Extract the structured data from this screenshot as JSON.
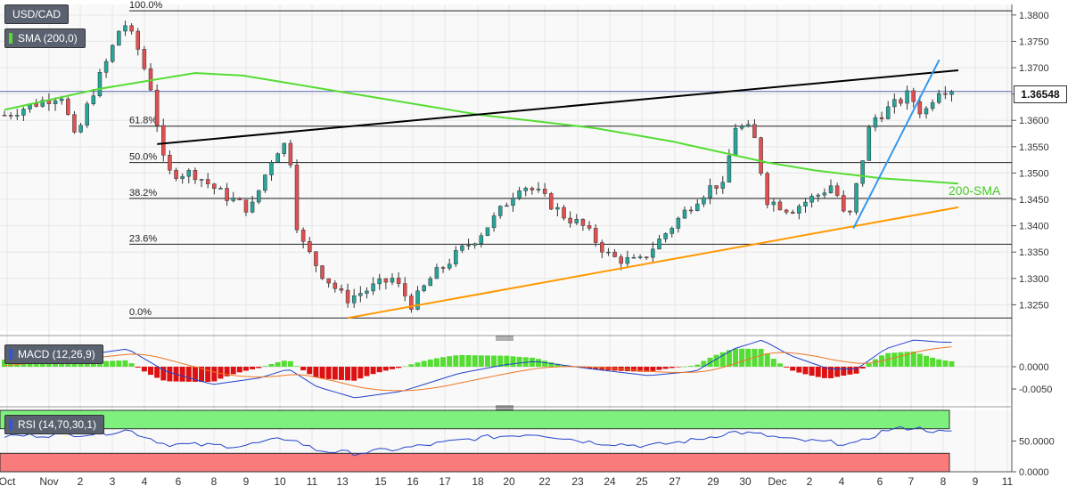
{
  "header": {
    "symbol": "USD/CAD",
    "sma_label": "SMA (200,0)",
    "current_price": "1.36548",
    "macd_label": "MACD (12,26,9)",
    "rsi_label": "RSI (14,70,30,1)"
  },
  "chart_data": [
    {
      "type": "candlestick",
      "panel": "price",
      "y_ticks": [
        "1.3800",
        "1.3750",
        "1.3700",
        "1.3650",
        "1.3600",
        "1.3550",
        "1.3500",
        "1.3450",
        "1.3400",
        "1.3350",
        "1.3300",
        "1.3250"
      ],
      "ylim": [
        1.32,
        1.382
      ],
      "x_ticks": [
        "Oct",
        "Nov",
        "2",
        "3",
        "4",
        "6",
        "8",
        "9",
        "10",
        "11",
        "13",
        "15",
        "16",
        "17",
        "18",
        "20",
        "22",
        "23",
        "24",
        "25",
        "27",
        "29",
        "30",
        "Dec",
        "2",
        "4",
        "6",
        "7",
        "8",
        "9",
        "11"
      ],
      "current_price": 1.36548,
      "fibonacci_levels": [
        {
          "label": "100.0%",
          "price": 1.3808
        },
        {
          "label": "61.8%",
          "price": 1.3589
        },
        {
          "label": "50.0%",
          "price": 1.352
        },
        {
          "label": "38.2%",
          "price": 1.3452
        },
        {
          "label": "23.6%",
          "price": 1.3365
        },
        {
          "label": "0.0%",
          "price": 1.3225
        }
      ],
      "sma_annotation": "200-SMA",
      "colors": {
        "up": "#26a69a",
        "down": "#e05050",
        "sma": "#55dd33",
        "resistance": "#000000",
        "support": "#ff9900",
        "trend": "#3399ee",
        "fib": "#000000"
      },
      "series": [
        {
          "name": "SMA (200,0)",
          "x": [
            0,
            0.1,
            0.2,
            0.25,
            0.3,
            0.4,
            0.5,
            0.55,
            0.62,
            0.7,
            0.75,
            0.8,
            0.85,
            0.92,
            1
          ],
          "y": [
            1.362,
            1.366,
            1.369,
            1.3685,
            1.367,
            1.364,
            1.361,
            1.36,
            1.3585,
            1.356,
            1.354,
            1.352,
            1.3505,
            1.349,
            1.348
          ]
        }
      ],
      "trendlines": [
        {
          "name": "resistance",
          "from": [
            0.16,
            1.3555
          ],
          "to": [
            1.0,
            1.3695
          ]
        },
        {
          "name": "support",
          "from": [
            0.36,
            1.3225
          ],
          "to": [
            1.0,
            1.3435
          ]
        },
        {
          "name": "trend",
          "from": [
            0.89,
            1.3395
          ],
          "to": [
            0.98,
            1.3715
          ]
        }
      ]
    },
    {
      "type": "bar",
      "panel": "macd",
      "y_ticks": [
        "0.0000",
        "-0.0050"
      ]
    },
    {
      "type": "line",
      "panel": "rsi",
      "y_ticks": [
        "50.0000",
        "0.0000"
      ]
    }
  ]
}
